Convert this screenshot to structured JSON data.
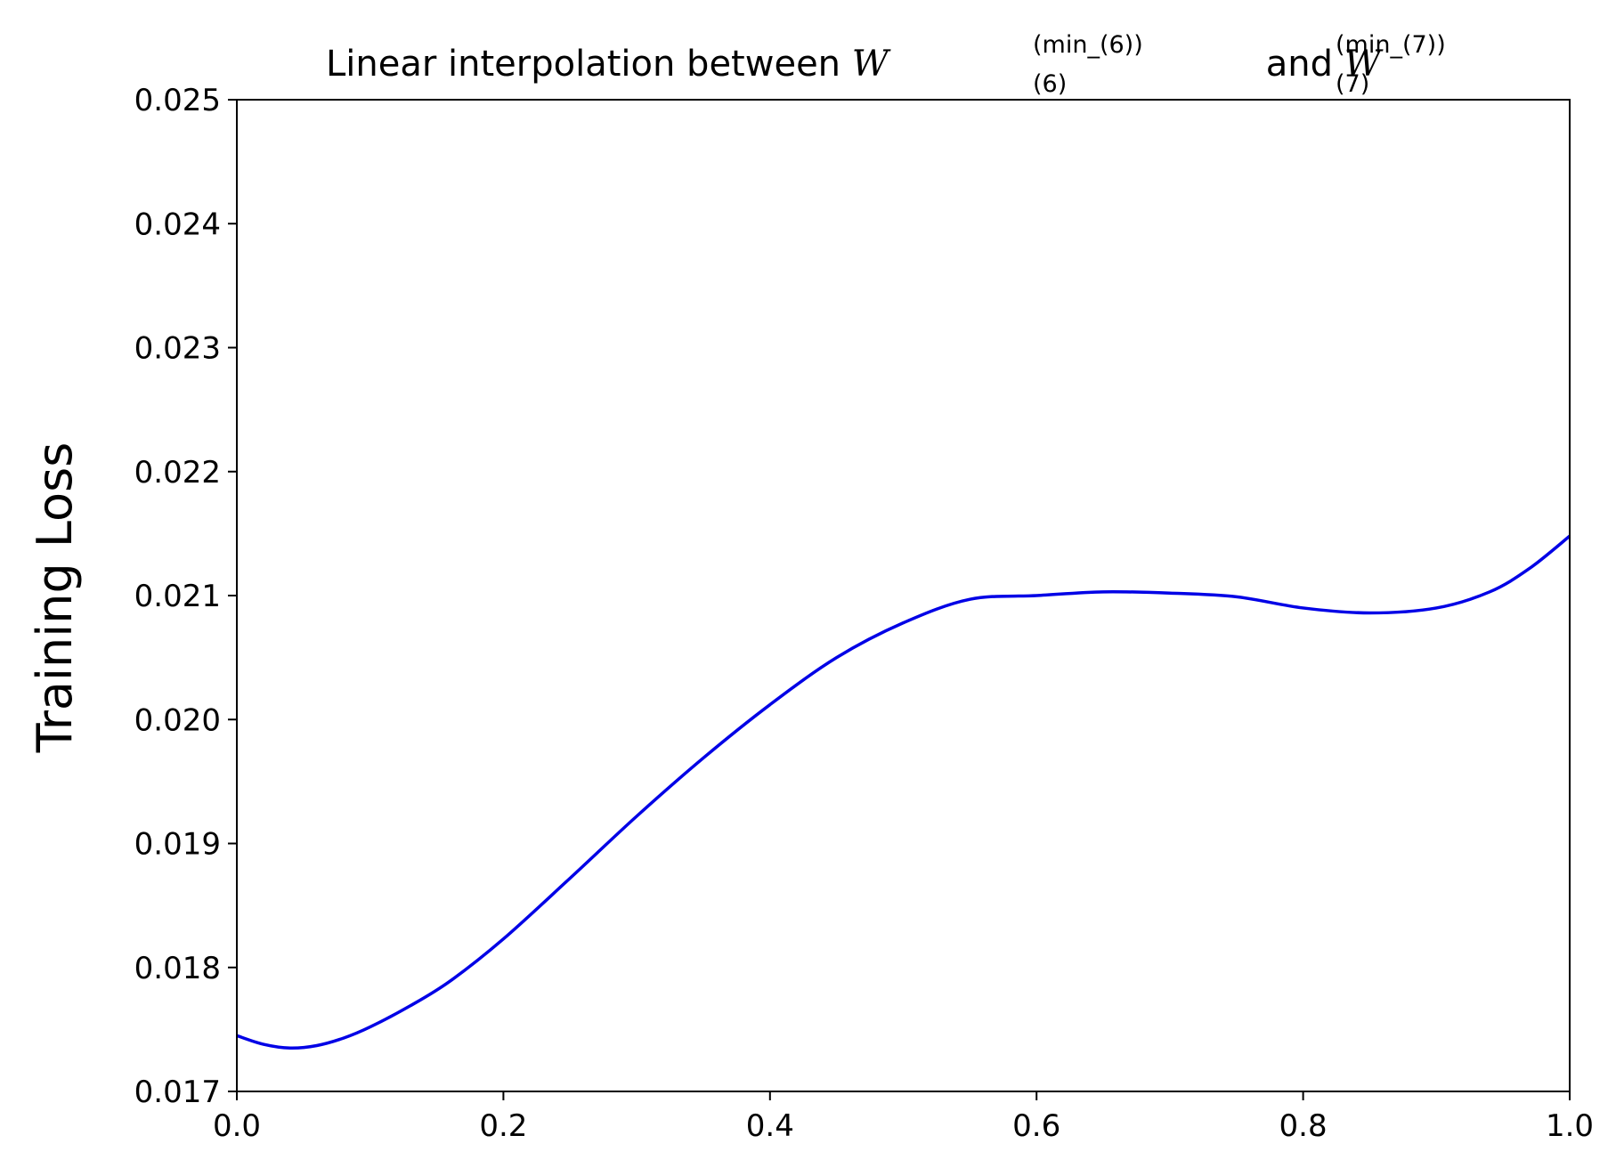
{
  "chart_data": {
    "type": "line",
    "title": {
      "prefix": "Linear interpolation between ",
      "symbol_a": "W",
      "sup_a": "(min_(6))",
      "sub_a": "(6)",
      "connector": " and ",
      "symbol_b": "W",
      "sup_b": "(min_(7))",
      "sub_b": "(7)"
    },
    "xlabel": "",
    "ylabel": "Training Loss",
    "xlim": [
      0.0,
      1.0
    ],
    "ylim": [
      0.017,
      0.025
    ],
    "xticks": [
      "0.0",
      "0.2",
      "0.4",
      "0.6",
      "0.8",
      "1.0"
    ],
    "yticks": [
      "0.017",
      "0.018",
      "0.019",
      "0.020",
      "0.021",
      "0.022",
      "0.023",
      "0.024",
      "0.025"
    ],
    "grid": false,
    "series": [
      {
        "color": "#0000e6",
        "x": [
          0.0,
          0.02,
          0.04,
          0.06,
          0.08,
          0.1,
          0.13,
          0.16,
          0.2,
          0.25,
          0.3,
          0.35,
          0.4,
          0.45,
          0.5,
          0.55,
          0.6,
          0.65,
          0.7,
          0.75,
          0.8,
          0.85,
          0.9,
          0.94,
          0.97,
          1.0
        ],
        "y": [
          0.01745,
          0.01738,
          0.01735,
          0.01737,
          0.01743,
          0.01752,
          0.01769,
          0.01789,
          0.01823,
          0.01872,
          0.01922,
          0.01969,
          0.02012,
          0.0205,
          0.02078,
          0.02097,
          0.021,
          0.02103,
          0.02102,
          0.02099,
          0.0209,
          0.02086,
          0.0209,
          0.02103,
          0.02122,
          0.02148
        ]
      }
    ]
  }
}
